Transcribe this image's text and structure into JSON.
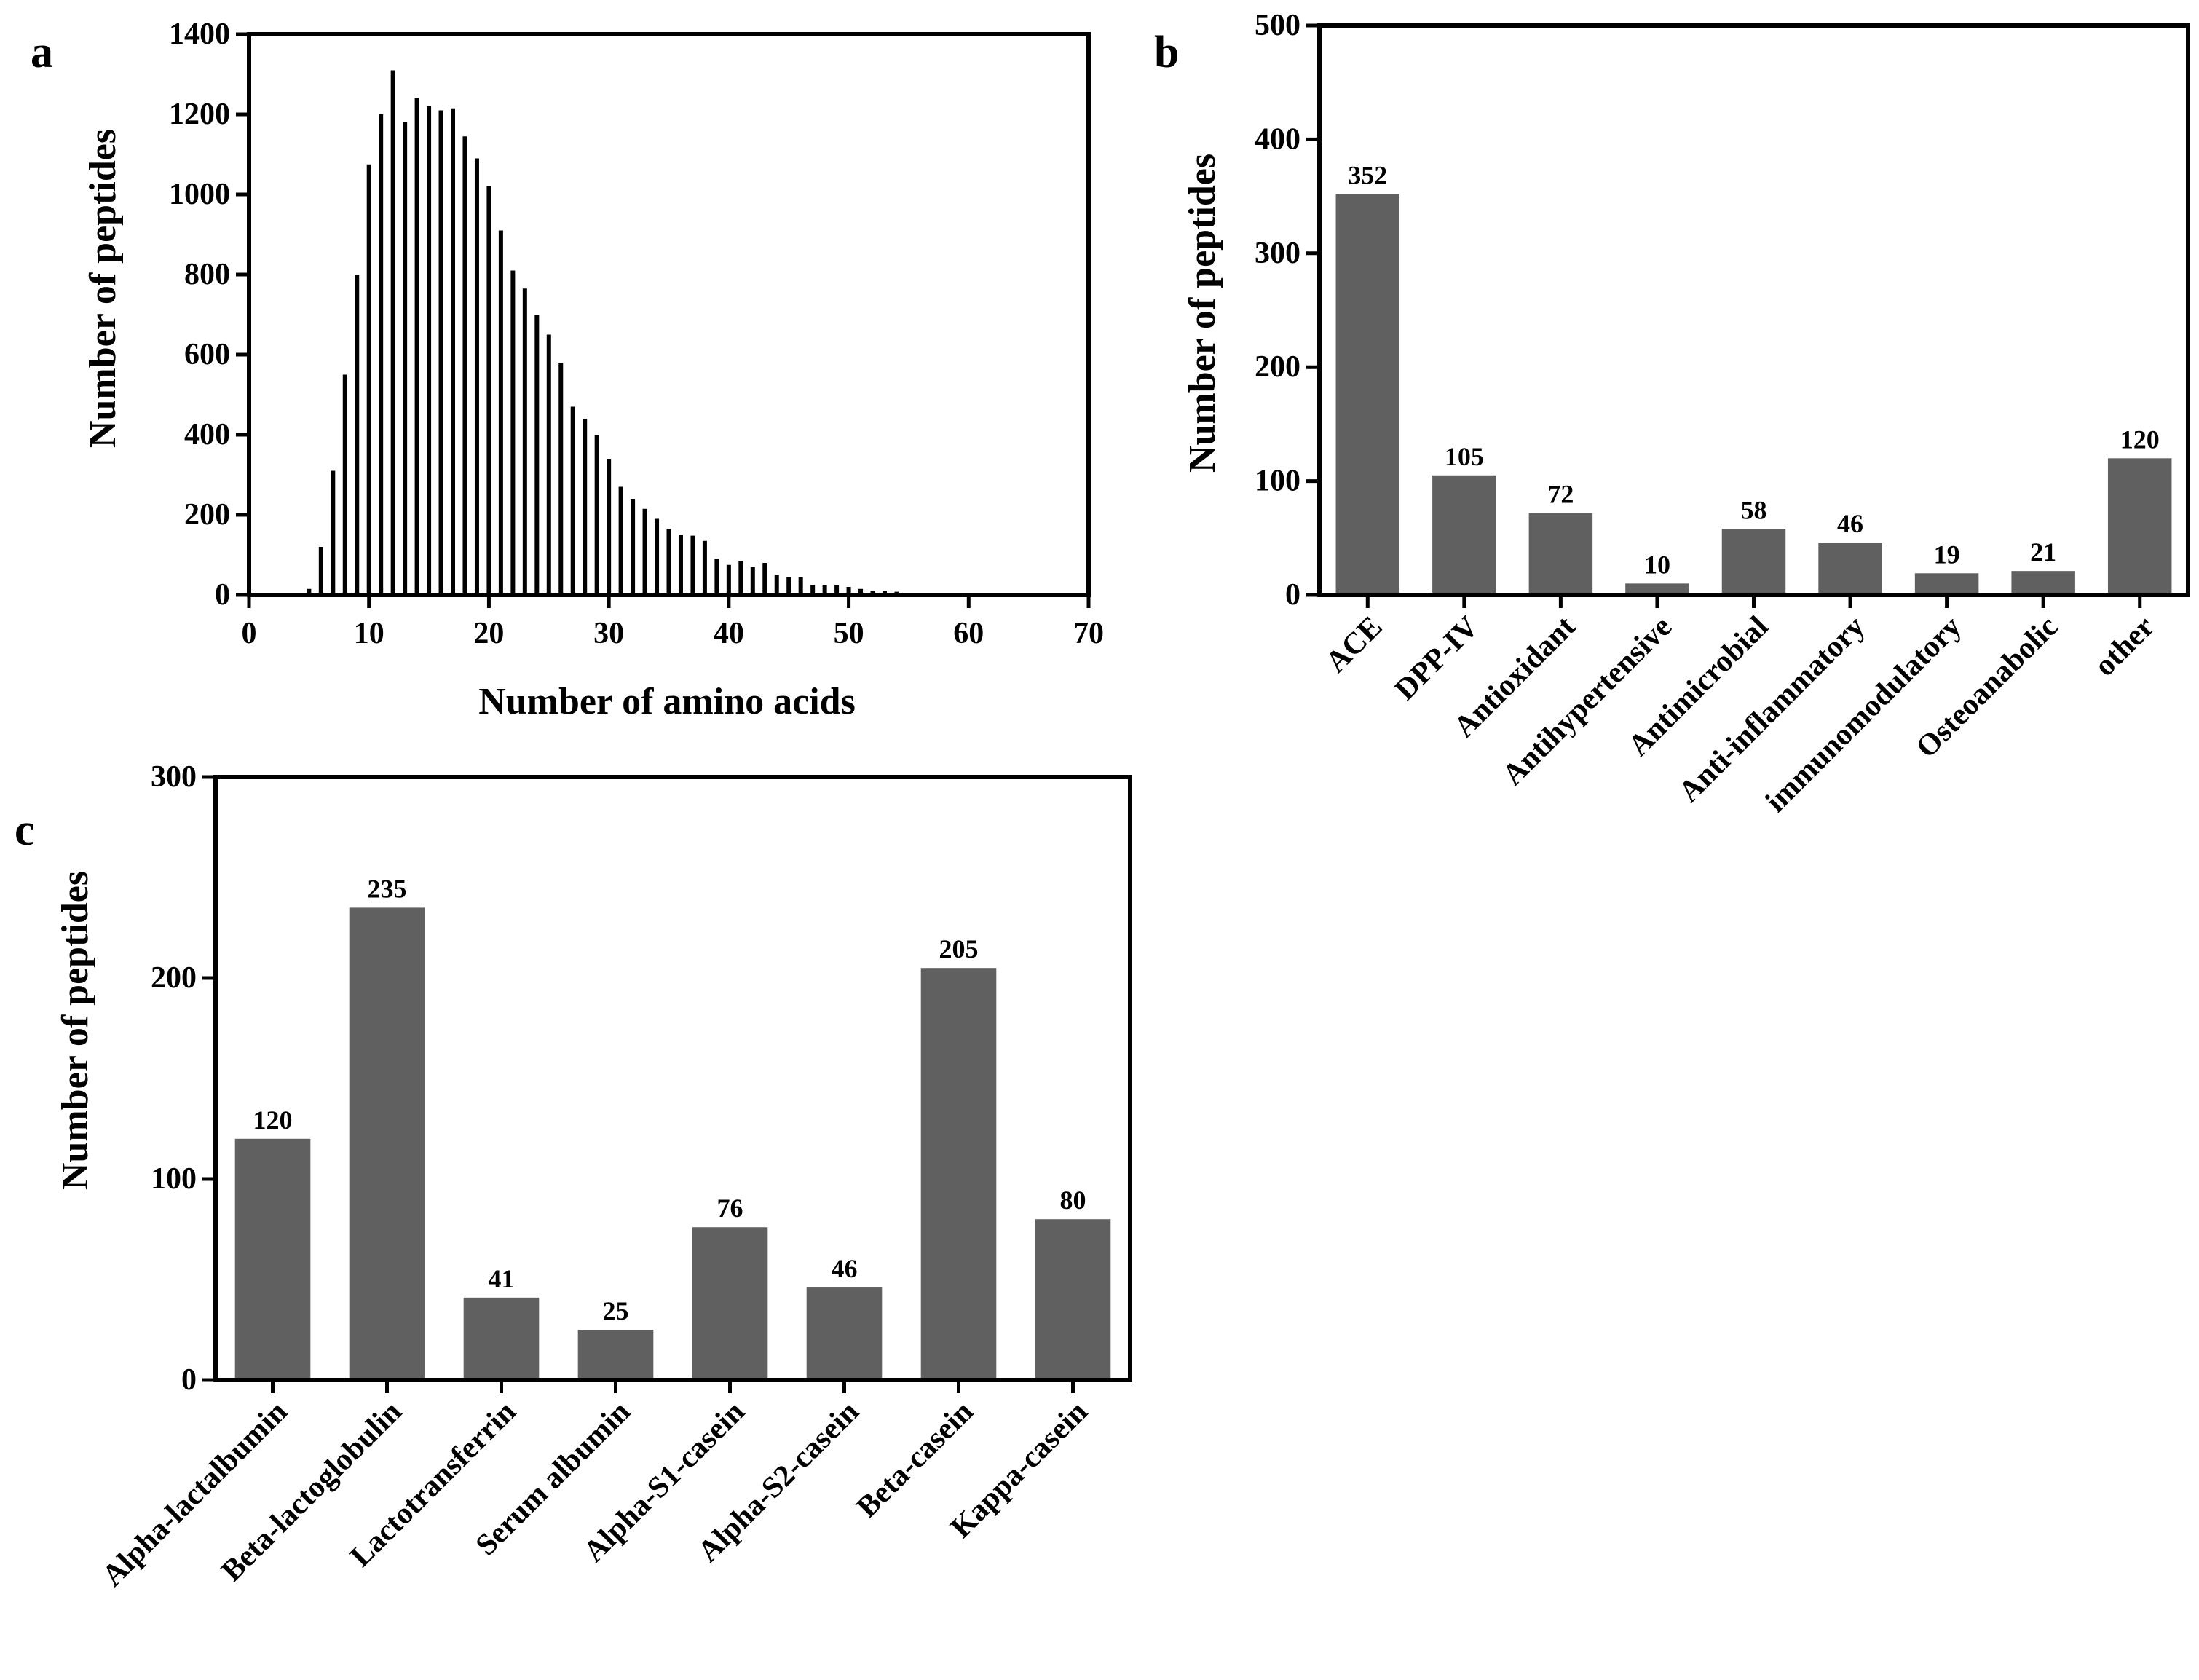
{
  "chart_data": [
    {
      "panel": "a",
      "type": "bar",
      "xlabel": "Number of amino acids",
      "ylabel": "Number of peptides",
      "xlim": [
        0,
        70
      ],
      "ylim": [
        0,
        1400
      ],
      "xticks": [
        0,
        10,
        20,
        30,
        40,
        50,
        60,
        70
      ],
      "yticks": [
        0,
        200,
        400,
        600,
        800,
        1000,
        1200,
        1400
      ],
      "bar_color": "#000000",
      "x": [
        5,
        6,
        7,
        8,
        9,
        10,
        11,
        12,
        13,
        14,
        15,
        16,
        17,
        18,
        19,
        20,
        21,
        22,
        23,
        24,
        25,
        26,
        27,
        28,
        29,
        30,
        31,
        32,
        33,
        34,
        35,
        36,
        37,
        38,
        39,
        40,
        41,
        42,
        43,
        44,
        45,
        46,
        47,
        48,
        49,
        50,
        51,
        52,
        53,
        54,
        55,
        56,
        57,
        58
      ],
      "values": [
        15,
        120,
        310,
        550,
        800,
        1075,
        1200,
        1310,
        1180,
        1240,
        1220,
        1210,
        1215,
        1145,
        1090,
        1020,
        910,
        810,
        765,
        700,
        650,
        580,
        470,
        440,
        400,
        340,
        270,
        240,
        215,
        190,
        165,
        150,
        148,
        135,
        90,
        75,
        85,
        70,
        80,
        50,
        45,
        45,
        25,
        25,
        25,
        20,
        15,
        10,
        10,
        8,
        5,
        5,
        5,
        3
      ]
    },
    {
      "panel": "b",
      "type": "bar",
      "ylabel": "Number of peptides",
      "ylim": [
        0,
        500
      ],
      "yticks": [
        0,
        100,
        200,
        300,
        400,
        500
      ],
      "bar_color": "#606060",
      "categories": [
        "ACE",
        "DPP-IV",
        "Antioxidant",
        "Antihypertensive",
        "Antimicrobial",
        "Anti-inflammatory",
        "immunomodulatory",
        "Osteoanabolic",
        "other"
      ],
      "values": [
        352,
        105,
        72,
        10,
        58,
        46,
        19,
        21,
        120
      ],
      "data_labels": [
        "352",
        "105",
        "72",
        "10",
        "58",
        "46",
        "19",
        "21",
        "120"
      ]
    },
    {
      "panel": "c",
      "type": "bar",
      "ylabel": "Number of peptides",
      "ylim": [
        0,
        300
      ],
      "yticks": [
        0,
        100,
        200,
        300
      ],
      "bar_color": "#606060",
      "categories": [
        "Alpha-lactalbumin",
        "Beta-lactoglobulin",
        "Lactotransferrin",
        "Serum albumin",
        "Alpha-S1-casein",
        "Alpha-S2-casein",
        "Beta-casein",
        "Kappa-casein"
      ],
      "values": [
        120,
        235,
        41,
        25,
        76,
        46,
        205,
        80
      ],
      "data_labels": [
        "120",
        "235",
        "41",
        "25",
        "76",
        "46",
        "205",
        "80"
      ]
    }
  ]
}
